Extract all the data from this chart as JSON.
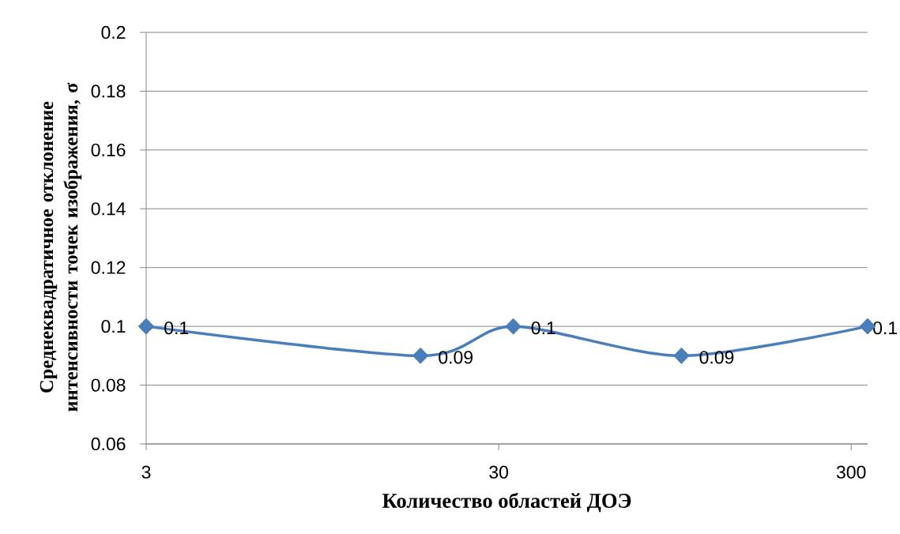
{
  "chart_data": {
    "type": "line",
    "xlabel": "Количество областей ДОЭ",
    "ylabel": "Среднеквадратичное отклонение интенсивности точек изображения, σ",
    "x": [
      3,
      18,
      33,
      99,
      334
    ],
    "values": [
      0.1,
      0.09,
      0.1,
      0.09,
      0.1
    ],
    "color": "#4a7ebb",
    "marker": "diamond",
    "line_style": "solid",
    "data_labels": true,
    "log": "x",
    "grid": "y",
    "xlim": [
      3,
      334
    ],
    "ylim": [
      0.06,
      0.2
    ],
    "xticks": [
      3,
      30,
      300
    ],
    "yticks": [
      0.06,
      0.08,
      0.1,
      0.12,
      0.14,
      0.16,
      0.18,
      0.2
    ]
  }
}
